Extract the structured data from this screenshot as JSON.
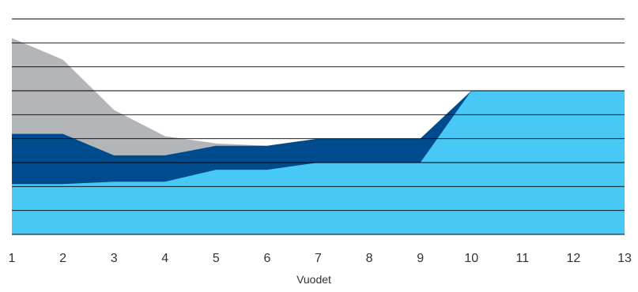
{
  "chart_data": {
    "type": "area",
    "xlabel": "Vuodet",
    "ylabel": "",
    "x": [
      1,
      2,
      3,
      4,
      5,
      6,
      7,
      8,
      9,
      10,
      11,
      12,
      13
    ],
    "ylim": [
      0,
      9
    ],
    "grid": true,
    "series": [
      {
        "color": "#b3b5b8",
        "values": [
          8.2,
          7.3,
          5.2,
          4.1,
          3.8,
          3.7,
          4.0,
          4.0,
          4.0,
          6.0,
          6.0,
          6.0,
          6.0
        ]
      },
      {
        "color": "#004b8d",
        "values": [
          4.2,
          4.2,
          3.3,
          3.3,
          3.7,
          3.7,
          4.0,
          4.0,
          4.0,
          6.0,
          6.0,
          6.0,
          6.0
        ]
      },
      {
        "color": "#48c8f5",
        "values": [
          2.1,
          2.1,
          2.2,
          2.2,
          2.7,
          2.7,
          3.0,
          3.0,
          3.0,
          6.0,
          6.0,
          6.0,
          6.0
        ]
      }
    ]
  }
}
